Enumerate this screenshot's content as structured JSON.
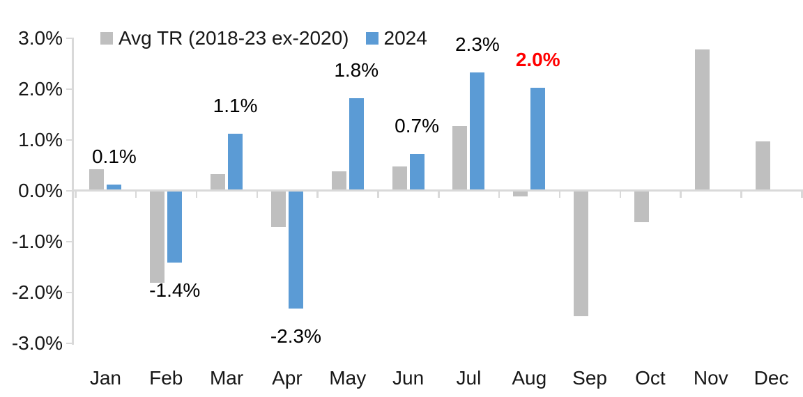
{
  "chart_data": {
    "type": "bar",
    "title": "",
    "categories": [
      "Jan",
      "Feb",
      "Mar",
      "Apr",
      "May",
      "Jun",
      "Jul",
      "Aug",
      "Sep",
      "Oct",
      "Nov",
      "Dec"
    ],
    "series": [
      {
        "name": "Avg TR (2018-23 ex-2020)",
        "color": "#BFBFBF",
        "values": [
          0.4,
          -1.8,
          0.3,
          -0.7,
          0.35,
          0.45,
          1.25,
          -0.1,
          -2.45,
          -0.6,
          2.75,
          0.95
        ]
      },
      {
        "name": "2024",
        "color": "#5B9BD5",
        "values": [
          0.1,
          -1.4,
          1.1,
          -2.3,
          1.8,
          0.7,
          2.3,
          2.0,
          null,
          null,
          null,
          null
        ]
      }
    ],
    "data_labels": [
      {
        "month": "Jan",
        "text": "0.1%",
        "color": "#000000",
        "bold": false
      },
      {
        "month": "Feb",
        "text": "-1.4%",
        "color": "#000000",
        "bold": false
      },
      {
        "month": "Mar",
        "text": "1.1%",
        "color": "#000000",
        "bold": false
      },
      {
        "month": "Apr",
        "text": "-2.3%",
        "color": "#000000",
        "bold": false
      },
      {
        "month": "May",
        "text": "1.8%",
        "color": "#000000",
        "bold": false
      },
      {
        "month": "Jun",
        "text": "0.7%",
        "color": "#000000",
        "bold": false
      },
      {
        "month": "Jul",
        "text": "2.3%",
        "color": "#000000",
        "bold": false
      },
      {
        "month": "Aug",
        "text": "2.0%",
        "color": "#FF0000",
        "bold": true
      }
    ],
    "y_axis": {
      "tick_labels": [
        "3.0%",
        "2.0%",
        "1.0%",
        "0.0%",
        "-1.0%",
        "-2.0%",
        "-3.0%"
      ],
      "tick_values": [
        3,
        2,
        1,
        0,
        -1,
        -2,
        -3
      ],
      "min": -3.0,
      "max": 3.0,
      "unit": "%"
    },
    "legend": {
      "position": "top",
      "entries": [
        "Avg TR (2018-23 ex-2020)",
        "2024"
      ]
    },
    "grid": false,
    "colors": {
      "axis": "#D9D9D9",
      "text": "#171717",
      "highlight": "#FF0000"
    }
  }
}
